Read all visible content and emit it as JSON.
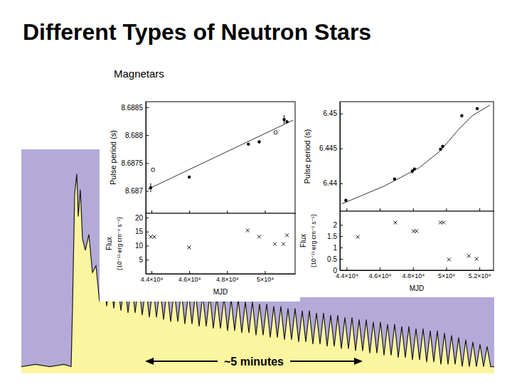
{
  "chart_data": [
    {
      "type": "area",
      "title": "Different Types of Neutron Stars",
      "subtitle": "Magnetars",
      "x": [
        0,
        20,
        40,
        60,
        70,
        72,
        75,
        78,
        80,
        83,
        86,
        90,
        95,
        100,
        105,
        110,
        115,
        120,
        125,
        130,
        135,
        140,
        145,
        150,
        155,
        160,
        165,
        170,
        175,
        180,
        185,
        190,
        195,
        200,
        205,
        210,
        215,
        220,
        225,
        230,
        235,
        240,
        245,
        250,
        255,
        260,
        265,
        270,
        275,
        280,
        285,
        290,
        295,
        300,
        305,
        310,
        315,
        320,
        325,
        330,
        335,
        340,
        345,
        350,
        355,
        360,
        365,
        370,
        375,
        380,
        385,
        390,
        395,
        400,
        405,
        410,
        415,
        420,
        425,
        430,
        435,
        440,
        445,
        450,
        455,
        460,
        465,
        470,
        475,
        480,
        485,
        490,
        495,
        500,
        505,
        510,
        515,
        520,
        525,
        530,
        535,
        540,
        545,
        550,
        555,
        560,
        565,
        570,
        575,
        580,
        585,
        590,
        595,
        600,
        605,
        610,
        615,
        620,
        625,
        630,
        635,
        640,
        645,
        650,
        655,
        660,
        665
      ],
      "values": [
        3,
        4,
        3,
        4,
        3,
        30,
        80,
        89,
        70,
        82,
        60,
        55,
        62,
        45,
        48,
        32,
        44,
        30,
        43,
        29,
        42,
        28,
        41,
        27,
        41,
        27,
        40,
        26,
        39,
        25,
        39,
        25,
        38,
        24,
        38,
        23,
        37,
        23,
        37,
        22,
        36,
        22,
        36,
        21,
        35,
        21,
        35,
        20,
        34,
        20,
        34,
        19,
        33,
        19,
        33,
        18,
        32,
        18,
        32,
        17,
        31,
        17,
        31,
        16,
        30,
        16,
        30,
        15,
        29,
        15,
        29,
        14,
        28,
        14,
        28,
        13,
        27,
        13,
        27,
        12,
        26,
        12,
        26,
        11,
        25,
        11,
        25,
        10,
        24,
        10,
        24,
        9,
        23,
        9,
        23,
        8,
        22,
        8,
        22,
        7,
        21,
        7,
        21,
        6,
        20,
        6,
        20,
        5,
        19,
        5,
        19,
        4,
        18,
        4,
        17,
        4,
        16,
        3,
        15,
        3,
        14,
        3,
        13,
        3,
        12,
        3,
        3
      ],
      "xlim": [
        0,
        665
      ],
      "ylim": [
        0,
        100
      ],
      "tick_labels": false,
      "color": "#fbf5a0",
      "annotations": [
        {
          "text": "~5 minutes"
        }
      ]
    },
    {
      "type": "scatter",
      "ylabel": "Pulse period (s)",
      "xlim": [
        43700,
        51600
      ],
      "ylim": [
        8.6866,
        8.6886
      ],
      "xticks": [
        44000,
        46000,
        48000,
        50000
      ],
      "yticks": [
        8.687,
        8.6875,
        8.688,
        8.6885
      ],
      "tick_labels": "y",
      "series": [
        {
          "type": "line",
          "line_style": "solid",
          "color": "#000000",
          "x": [
            43800,
            51500
          ],
          "values": [
            8.68703,
            8.68827
          ]
        },
        {
          "type": "scatter",
          "marker": "filled-circle",
          "color": "#000000",
          "x": [
            43960,
            46000,
            49130,
            49700,
            51020,
            51170
          ],
          "values": [
            8.68706,
            8.68725,
            8.68784,
            8.68788,
            8.68828,
            8.68824
          ],
          "errors": [
            8e-05,
            null,
            null,
            null,
            8e-05,
            null
          ]
        },
        {
          "type": "scatter",
          "marker": "open-circle",
          "color": "#000000",
          "x": [
            44080,
            50570
          ],
          "values": [
            8.68738,
            8.68805
          ]
        }
      ]
    },
    {
      "type": "scatter",
      "xlabel": "MJD",
      "ylabel": [
        "Flux",
        "(10⁻¹¹ erg cm⁻² s⁻¹)"
      ],
      "xlim": [
        43700,
        51600
      ],
      "ylim": [
        0,
        21.5
      ],
      "xticks": [
        {
          "value": 44000,
          "label": "4.4×10⁴"
        },
        {
          "value": 46000,
          "label": "4.6×10⁴"
        },
        {
          "value": 48000,
          "label": "4.8×10⁴"
        },
        {
          "value": 50000,
          "label": "5×10⁴"
        }
      ],
      "yticks": [
        5,
        10,
        15,
        20
      ],
      "series": [
        {
          "type": "scatter",
          "marker": "x",
          "color": "#000000",
          "x": [
            43960,
            44150,
            46000,
            49090,
            49700,
            50530,
            50980,
            51170
          ],
          "values": [
            13.15,
            13.15,
            9.36,
            15.4,
            13.2,
            10.6,
            10.6,
            13.7
          ]
        }
      ]
    },
    {
      "type": "scatter",
      "ylabel": "Pulse period (s)",
      "xlim": [
        43600,
        52850
      ],
      "ylim": [
        6.436,
        6.4517
      ],
      "xticks": [
        44000,
        46000,
        48000,
        50000,
        52000
      ],
      "yticks": [
        6.44,
        6.445,
        6.45
      ],
      "tick_labels": "y",
      "series": [
        {
          "type": "line",
          "line_style": "solid",
          "color": "#000000",
          "x": [
            43700,
            46260,
            48380,
            49660,
            50720,
            51570,
            52640
          ],
          "values": [
            6.43704,
            6.43959,
            6.44224,
            6.44469,
            6.44765,
            6.44969,
            6.45122
          ]
        },
        {
          "type": "scatter",
          "marker": "filled-circle",
          "color": "#000000",
          "x": [
            43960,
            46890,
            47960,
            48090,
            49660,
            49790,
            50940,
            51870
          ],
          "values": [
            6.43755,
            6.44061,
            6.44173,
            6.44204,
            6.4449,
            6.44531,
            6.44969,
            6.45071
          ],
          "errors": [
            null,
            null,
            0.0003,
            null,
            null,
            null,
            null,
            null
          ]
        }
      ]
    },
    {
      "type": "scatter",
      "xlabel": "MJD",
      "ylabel": [
        "Flux",
        "(10⁻¹¹ erg cm⁻² s⁻¹)"
      ],
      "xlim": [
        43600,
        52850
      ],
      "ylim": [
        0,
        2.6
      ],
      "xticks": [
        {
          "value": 44000,
          "label": "4.4×10⁴"
        },
        {
          "value": 46000,
          "label": "4.6×10⁴"
        },
        {
          "value": 48000,
          "label": "4.8×10⁴"
        },
        {
          "value": 50000,
          "label": "5×10⁴"
        },
        {
          "value": 52000,
          "label": "5.2×10⁴"
        }
      ],
      "yticks": [
        0,
        0.5,
        1,
        1.5,
        2
      ],
      "series": [
        {
          "type": "scatter",
          "marker": "x",
          "color": "#000000",
          "x": [
            44680,
            46940,
            48040,
            48210,
            49660,
            49830,
            50170,
            51360,
            51830
          ],
          "values": [
            1.47,
            2.1,
            1.72,
            1.72,
            2.1,
            2.1,
            0.47,
            0.63,
            0.5
          ]
        }
      ]
    }
  ]
}
